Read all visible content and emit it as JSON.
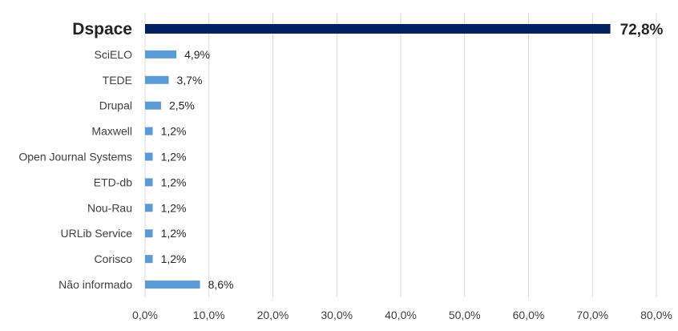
{
  "chart_data": {
    "type": "bar",
    "orientation": "horizontal",
    "categories": [
      "Dspace",
      "SciELO",
      "TEDE",
      "Drupal",
      "Maxwell",
      "Open Journal Systems",
      "ETD-db",
      "Nou-Rau",
      "URLib Service",
      "Corisco",
      "Não informado"
    ],
    "values": [
      72.8,
      4.9,
      3.7,
      2.5,
      1.2,
      1.2,
      1.2,
      1.2,
      1.2,
      1.2,
      8.6
    ],
    "value_labels": [
      "72,8%",
      "4,9%",
      "3,7%",
      "2,5%",
      "1,2%",
      "1,2%",
      "1,2%",
      "1,2%",
      "1,2%",
      "1,2%",
      "8,6%"
    ],
    "xlim": [
      0,
      80
    ],
    "x_ticks": [
      0,
      10,
      20,
      30,
      40,
      50,
      60,
      70,
      80
    ],
    "x_tick_labels": [
      "0,0%",
      "10,0%",
      "20,0%",
      "30,0%",
      "40,0%",
      "50,0%",
      "60,0%",
      "70,0%",
      "80,0%"
    ],
    "highlight_index": 0,
    "grid": true,
    "colors": {
      "bar": "#5b9bd5",
      "highlight": "#002060",
      "grid": "#d9d9d9"
    },
    "title": "",
    "xlabel": "",
    "ylabel": ""
  }
}
